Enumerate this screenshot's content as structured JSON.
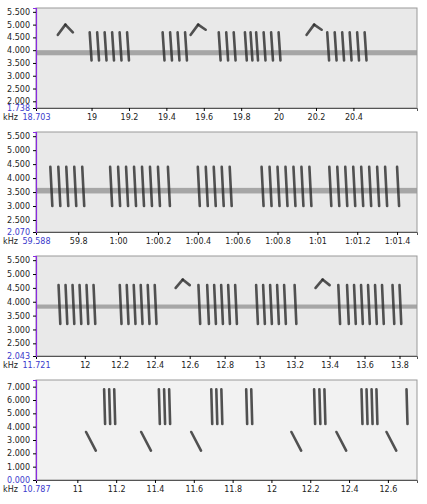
{
  "chart_data": [
    {
      "type": "spectrogram",
      "ylabel": "kHz",
      "xlim": [
        18.703,
        20.74
      ],
      "xticks": [
        18.703,
        19,
        19.2,
        19.4,
        19.6,
        19.8,
        20,
        20.2,
        20.4
      ],
      "ylim": [
        1.738,
        5.65
      ],
      "yticks": [
        1.738,
        {
          "value": 2,
          "label": "2.000"
        },
        {
          "value": 2.5,
          "label": "2.500"
        },
        {
          "value": 3,
          "label": "3.000"
        },
        {
          "value": 3.5,
          "label": "3.500"
        },
        {
          "value": 4,
          "label": "4.000"
        },
        {
          "value": 4.5,
          "label": "4.500"
        },
        {
          "value": 5,
          "label": "5.000"
        },
        {
          "value": 5.5,
          "label": "5.500"
        }
      ],
      "bands": [
        [
          3.8,
          4.0
        ]
      ],
      "notes": [
        [
          18.82,
          4.6,
          18.86,
          5.0
        ],
        [
          18.86,
          5.0,
          18.9,
          4.7
        ],
        [
          18.99,
          4.7,
          19.0,
          3.6
        ],
        [
          19.03,
          4.7,
          19.04,
          3.6
        ],
        [
          19.07,
          4.7,
          19.08,
          3.6
        ],
        [
          19.11,
          4.7,
          19.12,
          3.6
        ],
        [
          19.15,
          4.7,
          19.16,
          3.6
        ],
        [
          19.19,
          4.7,
          19.2,
          3.6
        ],
        [
          19.38,
          4.7,
          19.39,
          3.6
        ],
        [
          19.42,
          4.7,
          19.43,
          3.6
        ],
        [
          19.46,
          4.7,
          19.47,
          3.6
        ],
        [
          19.5,
          4.7,
          19.51,
          3.6
        ],
        [
          19.53,
          4.6,
          19.57,
          5.0
        ],
        [
          19.57,
          5.0,
          19.61,
          4.8
        ],
        [
          19.68,
          4.7,
          19.69,
          3.6
        ],
        [
          19.72,
          4.7,
          19.73,
          3.6
        ],
        [
          19.76,
          4.7,
          19.77,
          3.6
        ],
        [
          19.82,
          4.7,
          19.83,
          3.6
        ],
        [
          19.85,
          4.7,
          19.86,
          3.6
        ],
        [
          19.88,
          4.7,
          19.89,
          3.6
        ],
        [
          19.92,
          4.7,
          19.93,
          3.6
        ],
        [
          19.96,
          4.7,
          19.97,
          3.6
        ],
        [
          20.0,
          4.7,
          20.01,
          3.6
        ],
        [
          20.15,
          4.6,
          20.19,
          5.0
        ],
        [
          20.19,
          5.0,
          20.23,
          4.8
        ],
        [
          20.26,
          4.7,
          20.27,
          3.6
        ],
        [
          20.3,
          4.7,
          20.31,
          3.6
        ],
        [
          20.34,
          4.7,
          20.35,
          3.6
        ],
        [
          20.38,
          4.7,
          20.39,
          3.6
        ],
        [
          20.42,
          4.7,
          20.43,
          3.6
        ],
        [
          20.46,
          4.7,
          20.47,
          3.6
        ]
      ]
    },
    {
      "type": "spectrogram",
      "ylabel": "kHz",
      "xlim": [
        59.588,
        61.5
      ],
      "xticks": [
        59.588,
        59.8,
        {
          "value": 60,
          "label": "1:00"
        },
        {
          "value": 60.2,
          "label": "1:00.2"
        },
        {
          "value": 60.4,
          "label": "1:00.4"
        },
        {
          "value": 60.6,
          "label": "1:00.6"
        },
        {
          "value": 60.8,
          "label": "1:00.8"
        },
        {
          "value": 61,
          "label": "1:01"
        },
        {
          "value": 61.2,
          "label": "1:01.2"
        },
        {
          "value": 61.4,
          "label": "1:01.4"
        }
      ],
      "ylim": [
        2.07,
        5.65
      ],
      "yticks": [
        {
          "value": 2.07,
          "label": "2.070"
        },
        {
          "value": 2.5,
          "label": "2.500"
        },
        {
          "value": 3,
          "label": "3.000"
        },
        {
          "value": 3.5,
          "label": "3.500"
        },
        {
          "value": 4,
          "label": "4.000"
        },
        {
          "value": 4.5,
          "label": "4.500"
        },
        {
          "value": 5,
          "label": "5.000"
        },
        {
          "value": 5.5,
          "label": "5.500"
        }
      ],
      "bands": [
        [
          3.45,
          3.65
        ]
      ],
      "notes": [
        [
          59.66,
          4.4,
          59.67,
          3.0
        ],
        [
          59.7,
          4.4,
          59.71,
          3.0
        ],
        [
          59.74,
          4.4,
          59.75,
          3.0
        ],
        [
          59.78,
          4.4,
          59.79,
          3.0
        ],
        [
          59.82,
          4.4,
          59.83,
          3.0
        ],
        [
          59.96,
          4.4,
          59.97,
          3.0
        ],
        [
          60.0,
          4.4,
          60.01,
          3.0
        ],
        [
          60.04,
          4.4,
          60.05,
          3.0
        ],
        [
          60.08,
          4.4,
          60.09,
          3.0
        ],
        [
          60.12,
          4.4,
          60.13,
          3.0
        ],
        [
          60.16,
          4.4,
          60.17,
          3.0
        ],
        [
          60.2,
          4.4,
          60.21,
          3.0
        ],
        [
          60.25,
          4.4,
          60.26,
          3.0
        ],
        [
          60.4,
          4.4,
          60.41,
          3.0
        ],
        [
          60.44,
          4.4,
          60.45,
          3.0
        ],
        [
          60.48,
          4.4,
          60.49,
          3.0
        ],
        [
          60.52,
          4.4,
          60.53,
          3.0
        ],
        [
          60.56,
          4.4,
          60.57,
          3.0
        ],
        [
          60.72,
          4.4,
          60.73,
          3.0
        ],
        [
          60.76,
          4.4,
          60.77,
          3.0
        ],
        [
          60.8,
          4.4,
          60.81,
          3.0
        ],
        [
          60.84,
          4.4,
          60.85,
          3.0
        ],
        [
          60.88,
          4.4,
          60.89,
          3.0
        ],
        [
          60.92,
          4.4,
          60.93,
          3.0
        ],
        [
          60.96,
          4.4,
          60.97,
          3.0
        ],
        [
          61.06,
          4.4,
          61.07,
          3.0
        ],
        [
          61.1,
          4.4,
          61.11,
          3.0
        ],
        [
          61.14,
          4.4,
          61.15,
          3.0
        ],
        [
          61.18,
          4.4,
          61.19,
          3.0
        ],
        [
          61.22,
          4.4,
          61.23,
          3.0
        ],
        [
          61.26,
          4.4,
          61.27,
          3.0
        ],
        [
          61.3,
          4.4,
          61.31,
          3.0
        ],
        [
          61.34,
          4.4,
          61.35,
          3.0
        ],
        [
          61.4,
          4.4,
          61.41,
          3.0
        ]
      ]
    },
    {
      "type": "spectrogram",
      "ylabel": "kHz",
      "xlim": [
        11.721,
        13.9
      ],
      "xticks": [
        11.721,
        12,
        12.2,
        12.4,
        12.6,
        12.8,
        13,
        13.2,
        13.4,
        13.6,
        13.8
      ],
      "ylim": [
        2.043,
        5.65
      ],
      "yticks": [
        2.043,
        {
          "value": 2.5,
          "label": "2.500"
        },
        {
          "value": 3,
          "label": "3.000"
        },
        {
          "value": 3.5,
          "label": "3.500"
        },
        {
          "value": 4,
          "label": "4.000"
        },
        {
          "value": 4.5,
          "label": "4.500"
        },
        {
          "value": 5,
          "label": "5.000"
        },
        {
          "value": 5.5,
          "label": "5.500"
        }
      ],
      "bands": [
        [
          3.75,
          3.9
        ]
      ],
      "notes": [
        [
          11.85,
          4.6,
          11.86,
          3.2
        ],
        [
          11.89,
          4.6,
          11.9,
          3.2
        ],
        [
          11.93,
          4.6,
          11.94,
          3.2
        ],
        [
          11.97,
          4.6,
          11.98,
          3.2
        ],
        [
          12.01,
          4.6,
          12.02,
          3.2
        ],
        [
          12.05,
          4.6,
          12.06,
          3.2
        ],
        [
          12.2,
          4.6,
          12.21,
          3.2
        ],
        [
          12.24,
          4.6,
          12.25,
          3.2
        ],
        [
          12.28,
          4.6,
          12.29,
          3.2
        ],
        [
          12.32,
          4.6,
          12.33,
          3.2
        ],
        [
          12.36,
          4.6,
          12.37,
          3.2
        ],
        [
          12.4,
          4.6,
          12.41,
          3.2
        ],
        [
          12.52,
          4.5,
          12.56,
          4.8
        ],
        [
          12.56,
          4.8,
          12.6,
          4.6
        ],
        [
          12.65,
          4.6,
          12.66,
          3.2
        ],
        [
          12.7,
          4.6,
          12.71,
          3.2
        ],
        [
          12.74,
          4.6,
          12.75,
          3.2
        ],
        [
          12.78,
          4.6,
          12.79,
          3.2
        ],
        [
          12.82,
          4.6,
          12.83,
          3.2
        ],
        [
          12.86,
          4.6,
          12.87,
          3.2
        ],
        [
          12.98,
          4.6,
          12.99,
          3.2
        ],
        [
          13.02,
          4.6,
          13.03,
          3.2
        ],
        [
          13.06,
          4.6,
          13.07,
          3.2
        ],
        [
          13.1,
          4.6,
          13.11,
          3.2
        ],
        [
          13.14,
          4.6,
          13.15,
          3.2
        ],
        [
          13.2,
          4.6,
          13.21,
          3.2
        ],
        [
          13.32,
          4.5,
          13.36,
          4.8
        ],
        [
          13.36,
          4.8,
          13.4,
          4.6
        ],
        [
          13.45,
          4.6,
          13.46,
          3.2
        ],
        [
          13.5,
          4.6,
          13.51,
          3.2
        ],
        [
          13.54,
          4.6,
          13.55,
          3.2
        ],
        [
          13.58,
          4.6,
          13.59,
          3.2
        ],
        [
          13.62,
          4.6,
          13.63,
          3.2
        ],
        [
          13.66,
          4.6,
          13.67,
          3.2
        ],
        [
          13.7,
          4.6,
          13.71,
          3.2
        ],
        [
          13.76,
          4.6,
          13.77,
          3.2
        ],
        [
          13.8,
          4.6,
          13.81,
          3.2
        ]
      ]
    },
    {
      "type": "spectrogram",
      "ylabel": "kHz",
      "xlim": [
        10.787,
        12.75
      ],
      "xticks": [
        10.787,
        11,
        11.2,
        11.4,
        11.6,
        11.8,
        12,
        12.2,
        12.4,
        12.6
      ],
      "ylim": [
        0,
        7.5
      ],
      "yticks": [
        {
          "value": 0,
          "label": "0.000"
        },
        {
          "value": 1,
          "label": "1.000"
        },
        {
          "value": 2,
          "label": "2.000"
        },
        {
          "value": 3,
          "label": "3.000"
        },
        {
          "value": 4,
          "label": "4.000"
        },
        {
          "value": 5,
          "label": "5.000"
        },
        {
          "value": 6,
          "label": "6.000"
        },
        {
          "value": 7,
          "label": "7.000"
        }
      ],
      "notes": [
        [
          11.138,
          6.8,
          11.143,
          4.2
        ],
        [
          11.164,
          6.8,
          11.169,
          4.2
        ],
        [
          11.19,
          6.8,
          11.195,
          4.2
        ],
        [
          11.42,
          6.8,
          11.425,
          4.2
        ],
        [
          11.447,
          6.8,
          11.452,
          4.2
        ],
        [
          11.473,
          6.8,
          11.478,
          4.2
        ],
        [
          11.69,
          6.8,
          11.695,
          4.2
        ],
        [
          11.716,
          6.8,
          11.721,
          4.2
        ],
        [
          11.742,
          6.8,
          11.747,
          4.2
        ],
        [
          11.87,
          6.8,
          11.875,
          4.2
        ],
        [
          11.896,
          6.8,
          11.901,
          4.2
        ],
        [
          12.22,
          6.8,
          12.225,
          4.2
        ],
        [
          12.247,
          6.8,
          12.252,
          4.2
        ],
        [
          12.273,
          6.8,
          12.278,
          4.2
        ],
        [
          12.464,
          6.8,
          12.469,
          4.2
        ],
        [
          12.49,
          6.8,
          12.495,
          4.2
        ],
        [
          12.516,
          6.8,
          12.521,
          4.2
        ],
        [
          12.541,
          6.8,
          12.546,
          4.2
        ],
        [
          12.696,
          6.8,
          12.701,
          4.2
        ],
        [
          11.045,
          3.6,
          11.095,
          2.2
        ],
        [
          11.329,
          3.6,
          11.379,
          2.2
        ],
        [
          11.587,
          3.6,
          11.637,
          2.2
        ],
        [
          12.103,
          3.6,
          12.153,
          2.2
        ],
        [
          12.335,
          3.6,
          12.385,
          2.2
        ],
        [
          12.593,
          3.6,
          12.643,
          2.2
        ]
      ]
    }
  ]
}
